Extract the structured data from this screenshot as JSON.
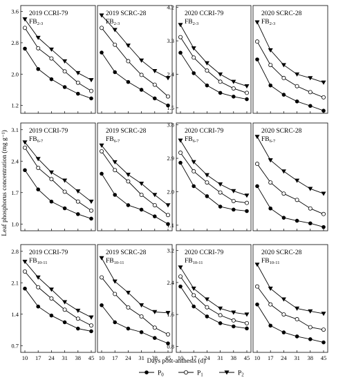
{
  "figure": {
    "ylabel": "Leaf phosphorus concentration (mg g⁻¹)",
    "xlabel": "Days post-anthesis (d)",
    "legend": [
      {
        "marker": "filled-circle",
        "label": "P",
        "sub": "0"
      },
      {
        "marker": "open-circle",
        "label": "P",
        "sub": "1"
      },
      {
        "marker": "filled-triangle",
        "label": "P",
        "sub": "2"
      }
    ],
    "colors": {
      "line": "#000000",
      "axis": "#000000"
    }
  },
  "chart_data": [
    {
      "type": "line",
      "year": "2019",
      "cultivar": "CCRI-79",
      "stage": "FB",
      "stage_sub": "2-3",
      "x": [
        10,
        17,
        24,
        31,
        38,
        45
      ],
      "xticks": [
        10,
        17,
        24,
        31,
        38,
        45
      ],
      "ylim": [
        1.0,
        3.75
      ],
      "yticks": [
        "1.2",
        "2.0",
        "2.8",
        "3.6"
      ],
      "series": [
        {
          "name": "P0",
          "values": [
            2.65,
            2.13,
            1.87,
            1.67,
            1.5,
            1.38
          ]
        },
        {
          "name": "P1",
          "values": [
            3.18,
            2.66,
            2.4,
            2.07,
            1.78,
            1.57
          ]
        },
        {
          "name": "P2",
          "values": [
            3.4,
            2.93,
            2.63,
            2.33,
            2.03,
            1.85
          ]
        }
      ]
    },
    {
      "type": "line",
      "year": "2019",
      "cultivar": "SCRC-28",
      "stage": "FB",
      "stage_sub": "2-3",
      "x": [
        10,
        17,
        24,
        31,
        38,
        45
      ],
      "xticks": [
        10,
        17,
        24,
        31,
        38,
        45
      ],
      "ylim": [
        1.0,
        3.75
      ],
      "yticks": [],
      "series": [
        {
          "name": "P0",
          "values": [
            2.55,
            2.05,
            1.8,
            1.6,
            1.38,
            1.2
          ]
        },
        {
          "name": "P1",
          "values": [
            3.18,
            2.75,
            2.33,
            1.98,
            1.73,
            1.43
          ]
        },
        {
          "name": "P2",
          "values": [
            3.5,
            3.13,
            2.73,
            2.35,
            2.08,
            1.9
          ]
        }
      ]
    },
    {
      "type": "line",
      "year": "2020",
      "cultivar": "CCRI-79",
      "stage": "FB",
      "stage_sub": "2-3",
      "x": [
        10,
        17,
        24,
        31,
        38,
        45
      ],
      "xticks": [
        10,
        17,
        24,
        31,
        38,
        45
      ],
      "ylim": [
        1.35,
        4.25
      ],
      "yticks": [
        "1.5",
        "2.4",
        "3.3",
        "4.2"
      ],
      "series": [
        {
          "name": "P0",
          "values": [
            2.98,
            2.43,
            2.1,
            1.9,
            1.8,
            1.73
          ]
        },
        {
          "name": "P1",
          "values": [
            3.4,
            2.85,
            2.5,
            2.2,
            2.02,
            1.9
          ]
        },
        {
          "name": "P2",
          "values": [
            3.73,
            3.1,
            2.7,
            2.4,
            2.2,
            2.08
          ]
        }
      ]
    },
    {
      "type": "line",
      "year": "2020",
      "cultivar": "SCRC-28",
      "stage": "FB",
      "stage_sub": "2-3",
      "x": [
        10,
        17,
        24,
        31,
        38,
        45
      ],
      "xticks": [
        10,
        17,
        24,
        31,
        38,
        45
      ],
      "ylim": [
        1.35,
        4.25
      ],
      "yticks": [],
      "series": [
        {
          "name": "P0",
          "values": [
            2.8,
            2.1,
            1.85,
            1.67,
            1.55,
            1.42
          ]
        },
        {
          "name": "P1",
          "values": [
            3.28,
            2.65,
            2.3,
            2.08,
            1.92,
            1.78
          ]
        },
        {
          "name": "P2",
          "values": [
            3.8,
            3.05,
            2.65,
            2.4,
            2.3,
            2.18
          ]
        }
      ]
    },
    {
      "type": "line",
      "year": "2019",
      "cultivar": "CCRI-79",
      "stage": "FB",
      "stage_sub": "6-7",
      "x": [
        10,
        17,
        24,
        31,
        38,
        45
      ],
      "xticks": [
        10,
        17,
        24,
        31,
        38,
        45
      ],
      "ylim": [
        0.85,
        3.25
      ],
      "yticks": [
        "1.0",
        "1.7",
        "2.4",
        "3.1"
      ],
      "series": [
        {
          "name": "P0",
          "values": [
            2.2,
            1.77,
            1.5,
            1.35,
            1.22,
            1.12
          ]
        },
        {
          "name": "P1",
          "values": [
            2.7,
            2.25,
            2.0,
            1.72,
            1.5,
            1.3
          ]
        },
        {
          "name": "P2",
          "values": [
            2.82,
            2.45,
            2.15,
            1.97,
            1.73,
            1.5
          ]
        }
      ]
    },
    {
      "type": "line",
      "year": "2019",
      "cultivar": "SCRC-28",
      "stage": "FB",
      "stage_sub": "6-7",
      "x": [
        10,
        17,
        24,
        31,
        38,
        45
      ],
      "xticks": [
        10,
        17,
        24,
        31,
        38,
        45
      ],
      "ylim": [
        0.85,
        3.25
      ],
      "yticks": [],
      "series": [
        {
          "name": "P0",
          "values": [
            2.12,
            1.65,
            1.42,
            1.32,
            1.17,
            1.0
          ]
        },
        {
          "name": "P1",
          "values": [
            2.62,
            2.2,
            1.95,
            1.65,
            1.42,
            1.2
          ]
        },
        {
          "name": "P2",
          "values": [
            2.75,
            2.38,
            2.1,
            1.9,
            1.65,
            1.42
          ]
        }
      ]
    },
    {
      "type": "line",
      "year": "2020",
      "cultivar": "CCRI-79",
      "stage": "FB",
      "stage_sub": "6-7",
      "x": [
        10,
        17,
        24,
        31,
        38,
        45
      ],
      "xticks": [
        10,
        17,
        24,
        31,
        38,
        45
      ],
      "ylim": [
        0.95,
        3.85
      ],
      "yticks": [
        "1.1",
        "2.0",
        "2.9",
        "3.8"
      ],
      "series": [
        {
          "name": "P0",
          "values": [
            2.78,
            2.15,
            1.88,
            1.6,
            1.52,
            1.48
          ]
        },
        {
          "name": "P1",
          "values": [
            3.05,
            2.55,
            2.25,
            1.98,
            1.75,
            1.7
          ]
        },
        {
          "name": "P2",
          "values": [
            3.38,
            2.8,
            2.45,
            2.2,
            2.02,
            1.9
          ]
        }
      ]
    },
    {
      "type": "line",
      "year": "2020",
      "cultivar": "SCRC-28",
      "stage": "FB",
      "stage_sub": "6-7",
      "x": [
        10,
        17,
        24,
        31,
        38,
        45
      ],
      "xticks": [
        10,
        17,
        24,
        31,
        38,
        45
      ],
      "ylim": [
        0.95,
        3.85
      ],
      "yticks": [],
      "series": [
        {
          "name": "P0",
          "values": [
            2.15,
            1.55,
            1.3,
            1.22,
            1.15,
            1.05
          ]
        },
        {
          "name": "P1",
          "values": [
            2.75,
            2.25,
            1.95,
            1.78,
            1.55,
            1.4
          ]
        },
        {
          "name": "P2",
          "values": [
            3.48,
            2.85,
            2.55,
            2.3,
            2.08,
            1.95
          ]
        }
      ]
    },
    {
      "type": "line",
      "year": "2019",
      "cultivar": "CCRI-79",
      "stage": "FB",
      "stage_sub": "10-11",
      "x": [
        10,
        17,
        24,
        31,
        38,
        45
      ],
      "xticks": [
        10,
        17,
        24,
        31,
        38,
        45
      ],
      "ylim": [
        0.55,
        2.95
      ],
      "yticks": [
        "0.7",
        "1.4",
        "2.1",
        "2.8"
      ],
      "series": [
        {
          "name": "P0",
          "values": [
            1.97,
            1.57,
            1.37,
            1.22,
            1.08,
            1.02
          ]
        },
        {
          "name": "P1",
          "values": [
            2.35,
            2.0,
            1.75,
            1.5,
            1.3,
            1.15
          ]
        },
        {
          "name": "P2",
          "values": [
            2.57,
            2.22,
            1.95,
            1.67,
            1.48,
            1.33
          ]
        }
      ]
    },
    {
      "type": "line",
      "year": "2019",
      "cultivar": "SCRC-28",
      "stage": "FB",
      "stage_sub": "10-11",
      "x": [
        10,
        17,
        24,
        31,
        38,
        45
      ],
      "xticks": [
        10,
        17,
        24,
        31,
        38,
        45
      ],
      "ylim": [
        0.55,
        2.95
      ],
      "yticks": [],
      "series": [
        {
          "name": "P0",
          "values": [
            1.6,
            1.22,
            1.08,
            1.0,
            0.87,
            0.75
          ]
        },
        {
          "name": "P1",
          "values": [
            2.22,
            1.85,
            1.55,
            1.35,
            1.1,
            0.95
          ]
        },
        {
          "name": "P2",
          "values": [
            2.65,
            2.13,
            1.88,
            1.6,
            1.45,
            1.43
          ]
        }
      ]
    },
    {
      "type": "line",
      "year": "2020",
      "cultivar": "CCRI-79",
      "stage": "FB",
      "stage_sub": "10-11",
      "x": [
        10,
        17,
        24,
        31,
        38,
        45
      ],
      "xticks": [
        10,
        17,
        24,
        31,
        38,
        45
      ],
      "ylim": [
        0.65,
        3.35
      ],
      "yticks": [
        "0.8",
        "1.6",
        "2.4",
        "3.2"
      ],
      "series": [
        {
          "name": "P0",
          "values": [
            2.3,
            1.8,
            1.55,
            1.38,
            1.3,
            1.25
          ]
        },
        {
          "name": "P1",
          "values": [
            2.55,
            2.08,
            1.78,
            1.58,
            1.45,
            1.38
          ]
        },
        {
          "name": "P2",
          "values": [
            2.78,
            2.25,
            1.98,
            1.75,
            1.65,
            1.6
          ]
        }
      ]
    },
    {
      "type": "line",
      "year": "2020",
      "cultivar": "SCRC-28",
      "stage": "FB",
      "stage_sub": "10-11",
      "x": [
        10,
        17,
        24,
        31,
        38,
        45
      ],
      "xticks": [
        10,
        17,
        24,
        31,
        38,
        45
      ],
      "ylim": [
        0.65,
        3.35
      ],
      "yticks": [],
      "series": [
        {
          "name": "P0",
          "values": [
            1.85,
            1.32,
            1.15,
            1.05,
            0.98,
            0.9
          ]
        },
        {
          "name": "P1",
          "values": [
            2.3,
            1.85,
            1.6,
            1.48,
            1.28,
            1.22
          ]
        },
        {
          "name": "P2",
          "values": [
            2.85,
            2.25,
            1.98,
            1.75,
            1.68,
            1.62
          ]
        }
      ]
    }
  ]
}
